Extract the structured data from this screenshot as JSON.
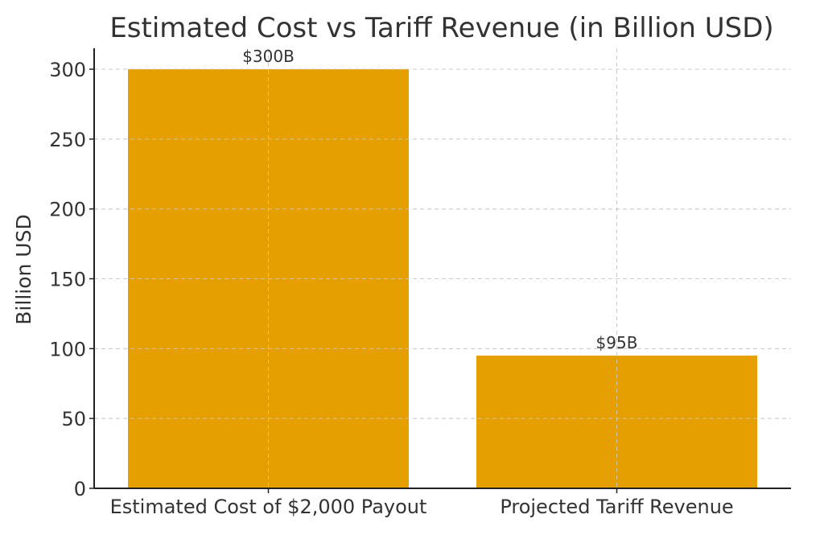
{
  "chart_data": {
    "type": "bar",
    "title": "Estimated Cost vs Tariff Revenue (in Billion USD)",
    "xlabel": "",
    "ylabel": "Billion USD",
    "categories": [
      "Estimated Cost of $2,000 Payout",
      "Projected Tariff Revenue"
    ],
    "values": [
      300,
      95
    ],
    "data_labels": [
      "$300B",
      "$95B"
    ],
    "ylim": [
      0,
      315
    ],
    "yticks": [
      0,
      50,
      100,
      150,
      200,
      250,
      300
    ],
    "grid": true,
    "bar_color": "#E69F00",
    "grid_color": "#cccccc",
    "axis_color": "#222222",
    "text_color": "#333333"
  }
}
